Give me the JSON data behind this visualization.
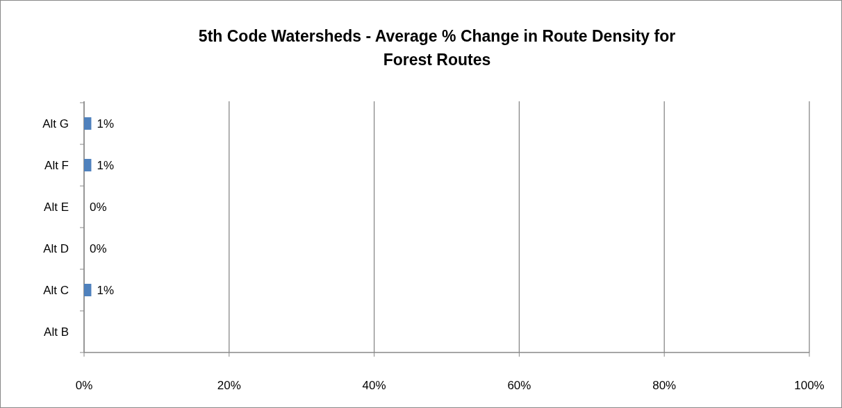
{
  "chart_data": {
    "type": "bar",
    "orientation": "horizontal",
    "title": "5th Code Watersheds - Average % Change in Route Density for Forest Routes",
    "categories": [
      "Alt G",
      "Alt F",
      "Alt E",
      "Alt D",
      "Alt C",
      "Alt B"
    ],
    "values": [
      1,
      1,
      0,
      0,
      1,
      null
    ],
    "color": "#4f81bd",
    "value_labels": [
      "1%",
      "1%",
      "0%",
      "0%",
      "1%",
      null
    ],
    "xlim": [
      0,
      100
    ],
    "xticks": [
      {
        "value": 0,
        "label": "0%"
      },
      {
        "value": 20,
        "label": "20%"
      },
      {
        "value": 40,
        "label": "40%"
      },
      {
        "value": 60,
        "label": "60%"
      },
      {
        "value": 80,
        "label": "80%"
      },
      {
        "value": 100,
        "label": "100%"
      }
    ],
    "grid": "x"
  }
}
